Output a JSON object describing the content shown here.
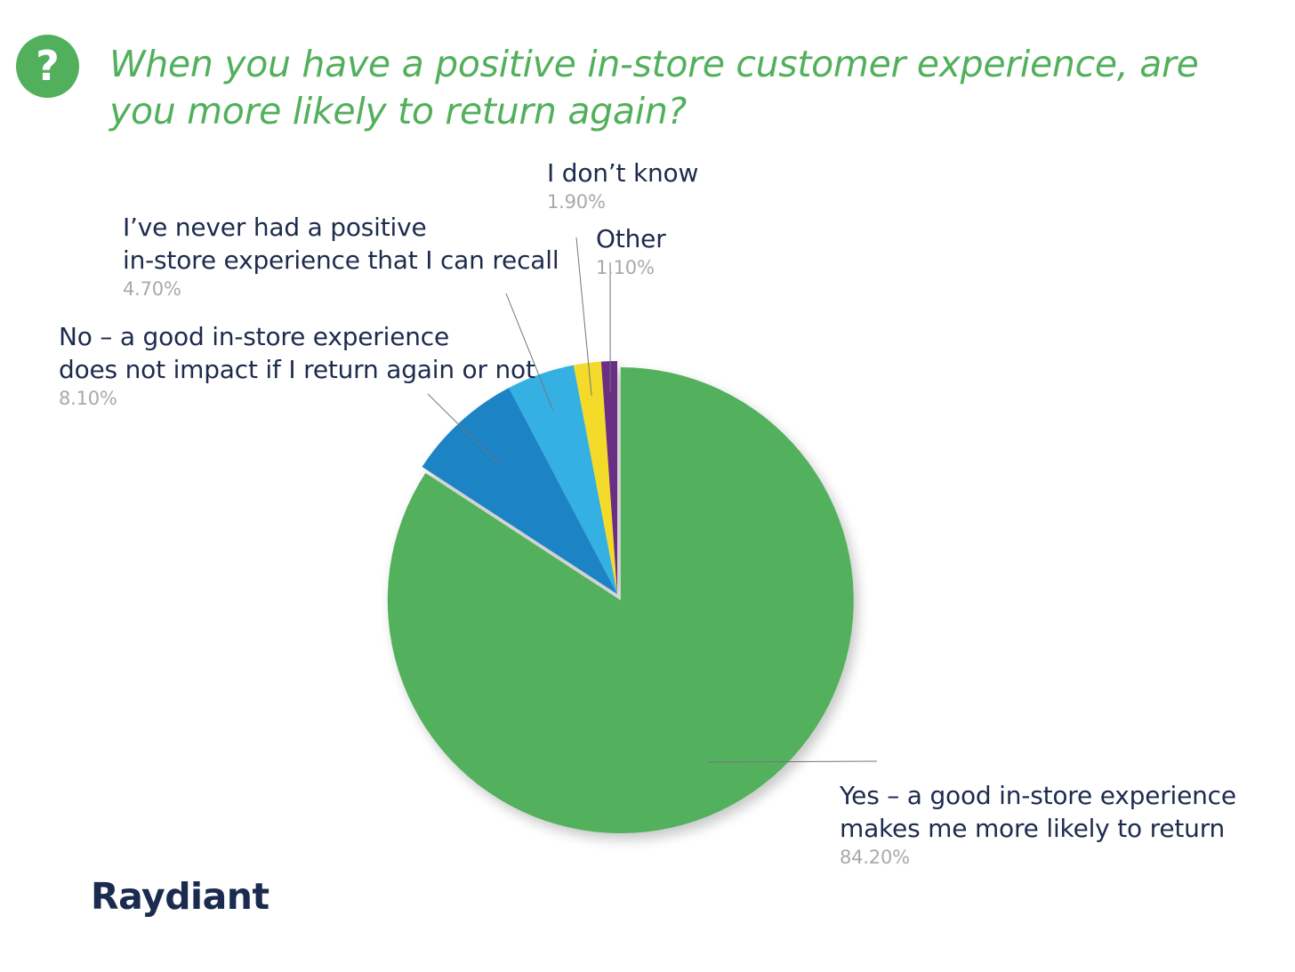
{
  "title": "When you have a positive in-store customer experience, are you more likely to return again?",
  "badge": "?",
  "logo_text": "Raydiant",
  "colors": {
    "accent": "#52b05c",
    "text": "#1d2b4d",
    "muted": "#a9a9a9"
  },
  "chart_data": {
    "type": "pie",
    "title": "When you have a positive in-store customer experience, are you more likely to return again?",
    "slices": [
      {
        "label": "Yes – a good in-store experience\nmakes me more likely to return",
        "value": 84.2,
        "display": "84.20%",
        "color": "#52b05c"
      },
      {
        "label": "No – a good in-store experience\ndoes not impact if I return again or not",
        "value": 8.1,
        "display": "8.10%",
        "color": "#1f83c5"
      },
      {
        "label": "I’ve never had a positive\nin-store experience that I can recall",
        "value": 4.7,
        "display": "4.70%",
        "color": "#36b0e2"
      },
      {
        "label": "I don’t know",
        "value": 1.9,
        "display": "1.90%",
        "color": "#f4db2c"
      },
      {
        "label": "Other",
        "value": 1.1,
        "display": "1.10%",
        "color": "#6b2d83"
      }
    ]
  }
}
